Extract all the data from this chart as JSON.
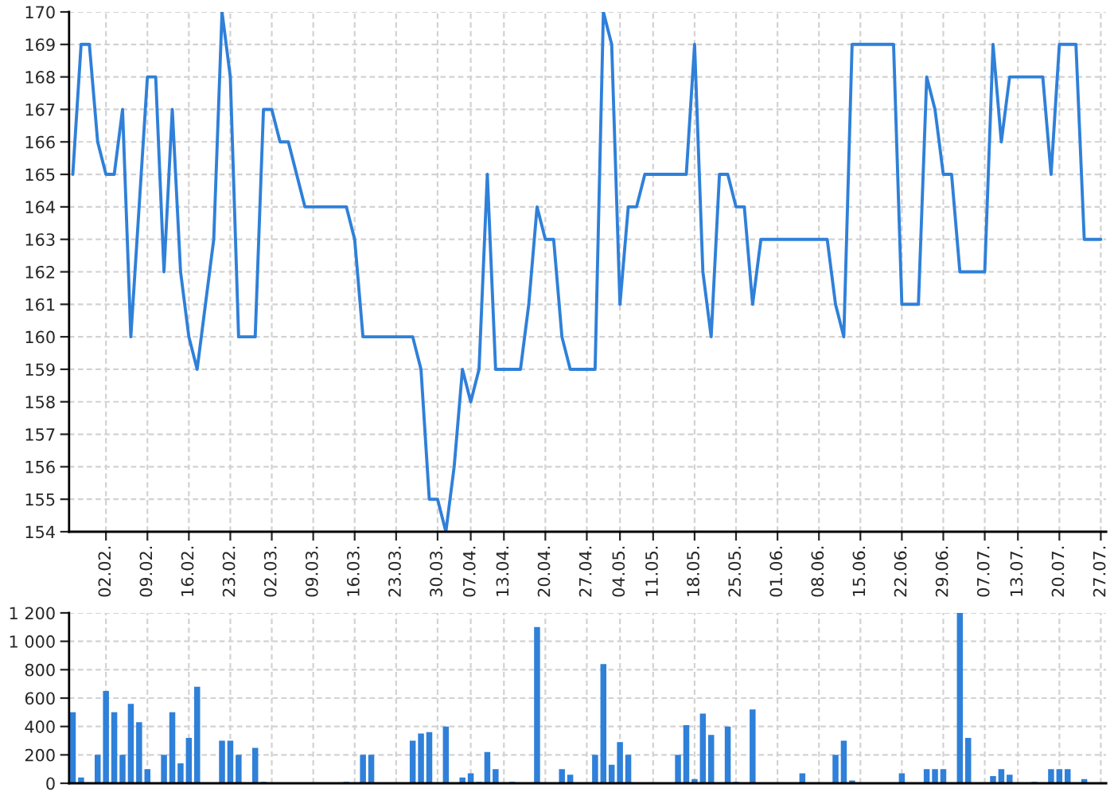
{
  "chart_data": [
    {
      "type": "line",
      "categories": [
        null,
        null,
        null,
        null,
        "02.02.",
        null,
        null,
        null,
        null,
        "09.02.",
        null,
        null,
        null,
        null,
        "16.02.",
        null,
        null,
        null,
        null,
        "23.02.",
        null,
        null,
        null,
        null,
        "02.03.",
        null,
        null,
        null,
        null,
        "09.03.",
        null,
        null,
        null,
        null,
        "16.03.",
        null,
        null,
        null,
        null,
        "23.03.",
        null,
        null,
        null,
        null,
        "30.03.",
        null,
        null,
        null,
        "07.04.",
        null,
        null,
        null,
        "13.04.",
        null,
        null,
        null,
        null,
        "20.04.",
        null,
        null,
        null,
        null,
        "27.04.",
        null,
        null,
        null,
        "04.05.",
        null,
        null,
        null,
        "11.05.",
        null,
        null,
        null,
        null,
        "18.05.",
        null,
        null,
        null,
        null,
        "25.05.",
        null,
        null,
        null,
        null,
        "01.06.",
        null,
        null,
        null,
        null,
        "08.06.",
        null,
        null,
        null,
        null,
        "15.06.",
        null,
        null,
        null,
        null,
        "22.06.",
        null,
        null,
        null,
        null,
        "29.06.",
        null,
        null,
        null,
        null,
        "07.07.",
        null,
        null,
        null,
        "13.07.",
        null,
        null,
        null,
        null,
        "20.07.",
        null,
        null,
        null,
        null,
        "27.07."
      ],
      "series": [
        {
          "color": "#2f80d9",
          "values": [
            165,
            169,
            169,
            166,
            165,
            165,
            167,
            160,
            164,
            168,
            168,
            162,
            167,
            162,
            160,
            159,
            161,
            163,
            170,
            168,
            160,
            160,
            160,
            167,
            167,
            166,
            166,
            165,
            164,
            164,
            164,
            164,
            164,
            164,
            163,
            160,
            160,
            160,
            160,
            160,
            160,
            160,
            159,
            155,
            155,
            154,
            156,
            159,
            158,
            159,
            165,
            159,
            159,
            159,
            159,
            161,
            164,
            163,
            163,
            160,
            159,
            159,
            159,
            159,
            170,
            169,
            161,
            164,
            164,
            165,
            165,
            165,
            165,
            165,
            165,
            169,
            162,
            160,
            165,
            165,
            164,
            164,
            161,
            163,
            163,
            163,
            163,
            163,
            163,
            163,
            163,
            163,
            161,
            160,
            169,
            169,
            169,
            169,
            169,
            169,
            161,
            161,
            161,
            168,
            167,
            165,
            165,
            162,
            162,
            162,
            162,
            169,
            166,
            168,
            168,
            168,
            168,
            168,
            165,
            169,
            169,
            169,
            163,
            163,
            163
          ]
        }
      ],
      "ylim": [
        154,
        170
      ],
      "yticks": [
        154,
        155,
        156,
        157,
        158,
        159,
        160,
        161,
        162,
        163,
        164,
        165,
        166,
        167,
        168,
        169,
        170
      ],
      "grid": true
    },
    {
      "type": "bar",
      "categories": [
        null,
        null,
        null,
        null,
        "02.02.",
        null,
        null,
        null,
        null,
        "09.02.",
        null,
        null,
        null,
        null,
        "16.02.",
        null,
        null,
        null,
        null,
        "23.02.",
        null,
        null,
        null,
        null,
        "02.03.",
        null,
        null,
        null,
        null,
        "09.03.",
        null,
        null,
        null,
        null,
        "16.03.",
        null,
        null,
        null,
        null,
        "23.03.",
        null,
        null,
        null,
        null,
        "30.03.",
        null,
        null,
        null,
        "07.04.",
        null,
        null,
        null,
        "13.04.",
        null,
        null,
        null,
        null,
        "20.04.",
        null,
        null,
        null,
        null,
        "27.04.",
        null,
        null,
        null,
        "04.05.",
        null,
        null,
        null,
        "11.05.",
        null,
        null,
        null,
        null,
        "18.05.",
        null,
        null,
        null,
        null,
        "25.05.",
        null,
        null,
        null,
        null,
        "01.06.",
        null,
        null,
        null,
        null,
        "08.06.",
        null,
        null,
        null,
        null,
        "15.06.",
        null,
        null,
        null,
        null,
        "22.06.",
        null,
        null,
        null,
        null,
        "29.06.",
        null,
        null,
        null,
        null,
        "07.07.",
        null,
        null,
        null,
        "13.07.",
        null,
        null,
        null,
        null,
        "20.07.",
        null,
        null,
        null,
        null,
        "27.07."
      ],
      "series": [
        {
          "color": "#2f80d9",
          "values": [
            500,
            40,
            null,
            200,
            650,
            500,
            200,
            560,
            430,
            100,
            null,
            200,
            500,
            140,
            320,
            680,
            null,
            null,
            300,
            300,
            200,
            null,
            250,
            10,
            null,
            null,
            null,
            null,
            null,
            null,
            null,
            null,
            null,
            10,
            null,
            200,
            200,
            null,
            null,
            null,
            null,
            300,
            350,
            360,
            null,
            400,
            null,
            40,
            70,
            10,
            220,
            100,
            null,
            10,
            null,
            null,
            1100,
            null,
            null,
            100,
            60,
            null,
            null,
            200,
            840,
            130,
            290,
            200,
            null,
            null,
            null,
            null,
            null,
            200,
            410,
            30,
            490,
            340,
            null,
            400,
            10,
            null,
            520,
            null,
            null,
            null,
            null,
            null,
            70,
            null,
            null,
            null,
            200,
            300,
            20,
            null,
            null,
            null,
            null,
            null,
            70,
            null,
            null,
            100,
            100,
            100,
            null,
            1200,
            320,
            null,
            null,
            50,
            100,
            60,
            null,
            null,
            10,
            null,
            100,
            100,
            100,
            null,
            30,
            null,
            null
          ]
        }
      ],
      "ylim": [
        0,
        1200
      ],
      "yticks": [
        0,
        200,
        400,
        600,
        800,
        {
          "value": 1000,
          "label": "1 000"
        },
        {
          "value": 1200,
          "label": "1 200"
        }
      ],
      "grid": true,
      "tick_labels": "y"
    }
  ]
}
